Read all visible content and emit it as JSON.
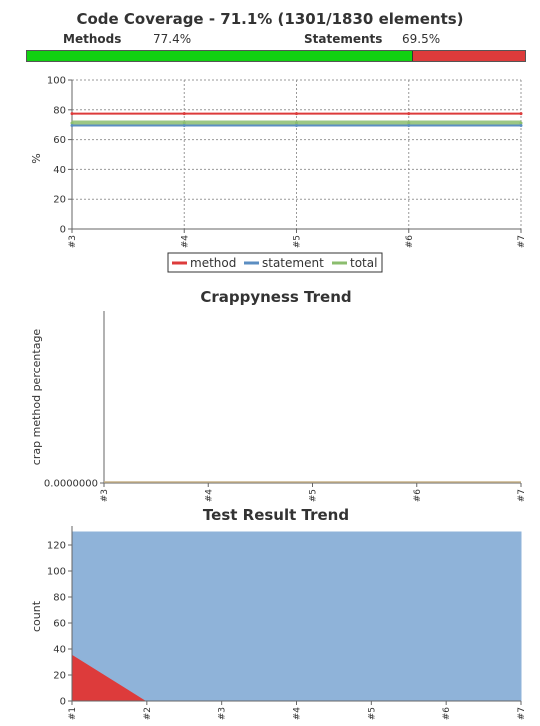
{
  "coverage_header": {
    "title": "Code Coverage - 71.1% (1301/1830 elements)",
    "methods_label": "Methods",
    "methods_value": "77.4%",
    "statements_label": "Statements",
    "statements_value": "69.5%",
    "bar_fraction": 0.774,
    "bar_colors": {
      "covered": "#11d111",
      "uncovered": "#dd3b3b"
    }
  },
  "chart_data": [
    {
      "type": "line",
      "title": "",
      "xlabel": "",
      "ylabel": "%",
      "ylim": [
        0,
        100
      ],
      "yticks": [
        0,
        20,
        40,
        60,
        80,
        100
      ],
      "x": [
        "#3",
        "#4",
        "#5",
        "#6",
        "#7"
      ],
      "grid": true,
      "legend": "bottom",
      "series": [
        {
          "name": "method",
          "color": "#dd3b3b",
          "values": [
            77.4,
            77.4,
            77.4,
            77.4,
            77.4
          ]
        },
        {
          "name": "statement",
          "color": "#5b8ec2",
          "values": [
            69.5,
            69.5,
            69.5,
            69.5,
            69.5
          ]
        },
        {
          "name": "total",
          "color": "#8bbd6e",
          "values": [
            71.1,
            71.1,
            71.1,
            71.1,
            71.1
          ]
        }
      ]
    },
    {
      "type": "line",
      "title": "Crappyness Trend",
      "xlabel": "",
      "ylabel": "crap method percentage",
      "yticks": [
        "0.0000000"
      ],
      "x": [
        "#3",
        "#4",
        "#5",
        "#6",
        "#7"
      ],
      "series": [
        {
          "color": "#c8b48a",
          "values": [
            0,
            0,
            0,
            0,
            0
          ]
        }
      ]
    },
    {
      "type": "area",
      "title": "Test Result Trend",
      "xlabel": "",
      "ylabel": "count",
      "ylim": [
        0,
        130
      ],
      "yticks": [
        0,
        20,
        40,
        60,
        80,
        100,
        120
      ],
      "x": [
        "#1",
        "#2",
        "#3",
        "#4",
        "#5",
        "#6",
        "#7"
      ],
      "stacked": true,
      "series": [
        {
          "color": "#dd3b3b",
          "values": [
            36,
            0,
            0,
            0,
            0,
            0,
            0
          ]
        },
        {
          "color": "#8fb3d9",
          "values": [
            94,
            130,
            130,
            130,
            130,
            130,
            130
          ]
        }
      ]
    }
  ]
}
